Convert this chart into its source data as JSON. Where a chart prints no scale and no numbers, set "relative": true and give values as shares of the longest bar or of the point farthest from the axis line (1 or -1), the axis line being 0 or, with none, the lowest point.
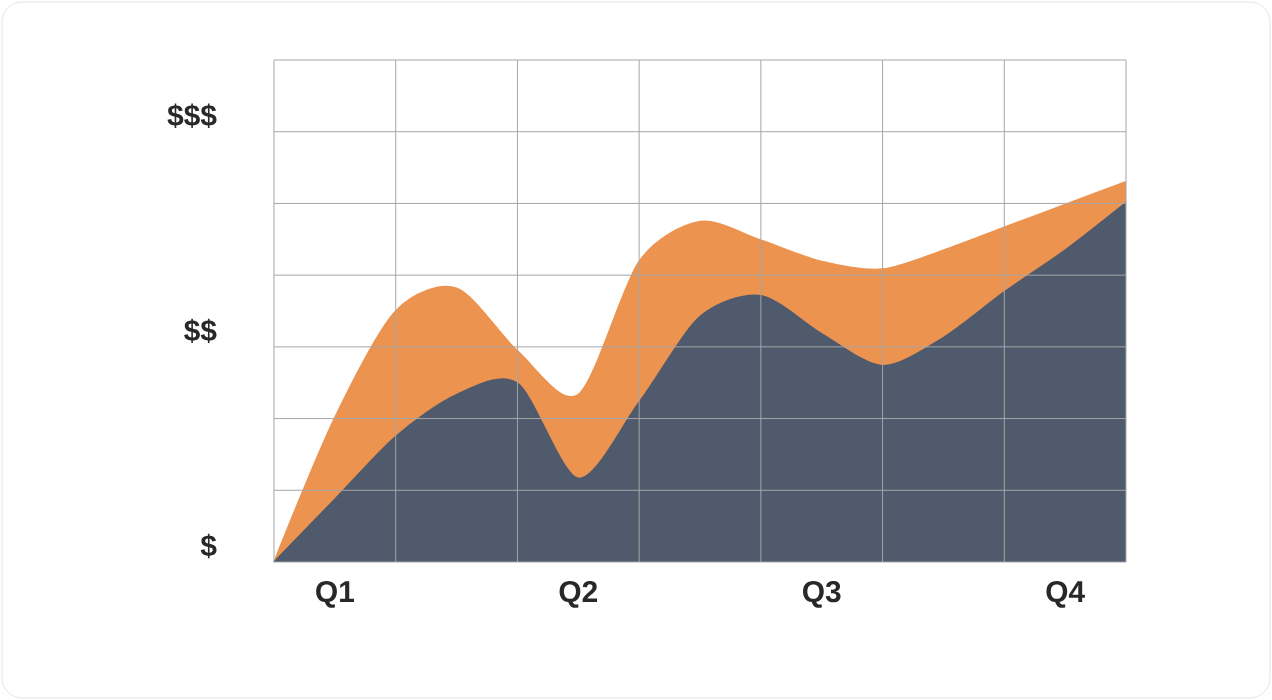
{
  "chart_data": {
    "type": "area",
    "relative": true,
    "grid": true,
    "marker": "none",
    "categories": [
      null,
      "Q1",
      null,
      null,
      null,
      "Q2",
      null,
      null,
      null,
      "Q3",
      null,
      null,
      null,
      "Q4",
      null
    ],
    "annotations": [
      "$",
      "$$",
      "$$$"
    ],
    "series": [
      {
        "color": "#ec9350",
        "values": [
          0,
          0.38,
          0.66,
          0.72,
          0.555,
          0.44,
          0.79,
          0.895,
          0.846,
          0.79,
          0.77,
          0.82,
          0.88,
          0.94,
          1.0
        ]
      },
      {
        "color": "#4f5a6d",
        "values": [
          0,
          0.165,
          0.33,
          0.44,
          0.47,
          0.22,
          0.42,
          0.645,
          0.7,
          0.6,
          0.516,
          0.59,
          0.71,
          0.82,
          0.945
        ]
      }
    ]
  }
}
